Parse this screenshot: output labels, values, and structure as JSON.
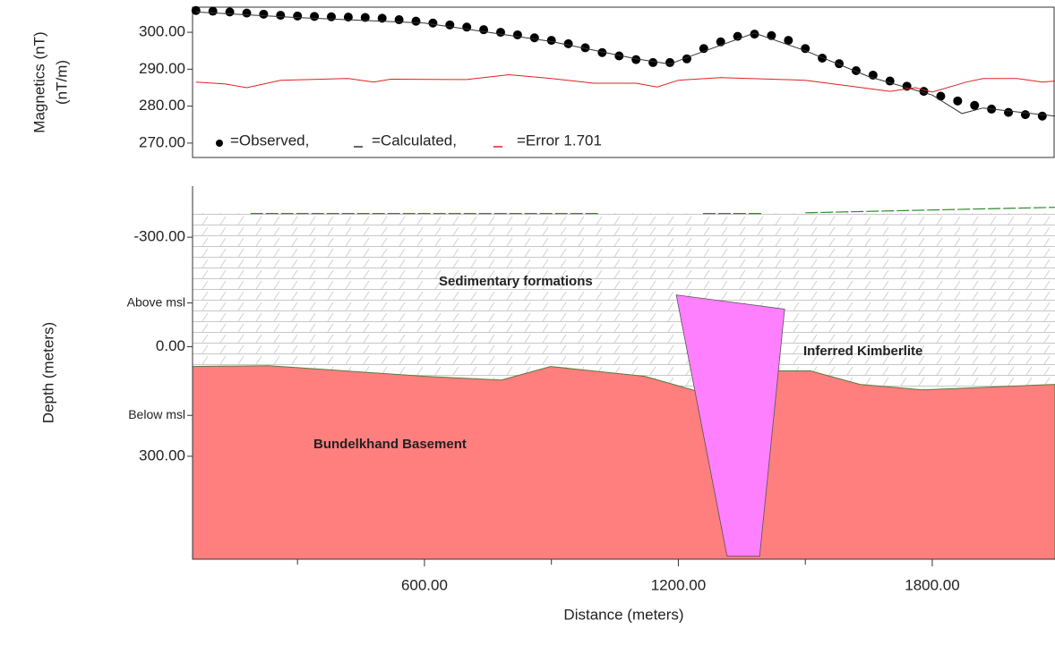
{
  "chart_data": [
    {
      "type": "line",
      "y_label": [
        "Magnetics (nT)",
        "(nT/m)"
      ],
      "xlim": [
        52,
        2090
      ],
      "ylim": [
        266.1,
        306.8
      ],
      "yticks": [
        {
          "value": 270,
          "label": "270.00"
        },
        {
          "value": 280,
          "label": "280.00"
        },
        {
          "value": 290,
          "label": "290.00"
        },
        {
          "value": 300,
          "label": "300.00"
        }
      ],
      "series": [
        {
          "name": "=Observed,",
          "color": "#000000",
          "marker": "dot",
          "x": [
            60,
            100,
            140,
            180,
            220,
            260,
            300,
            340,
            380,
            420,
            460,
            500,
            540,
            580,
            620,
            660,
            700,
            740,
            780,
            820,
            860,
            900,
            940,
            980,
            1020,
            1060,
            1100,
            1140,
            1180,
            1220,
            1260,
            1300,
            1340,
            1380,
            1420,
            1460,
            1500,
            1540,
            1580,
            1620,
            1660,
            1700,
            1740,
            1780,
            1820,
            1860,
            1900,
            1940,
            1980,
            2020,
            2060
          ],
          "values": [
            305.9,
            305.7,
            305.5,
            305.2,
            304.9,
            304.6,
            304.4,
            304.3,
            304.2,
            304.1,
            304.0,
            303.8,
            303.4,
            303.0,
            302.5,
            302.0,
            301.4,
            300.7,
            300.0,
            299.3,
            298.5,
            297.8,
            296.9,
            295.8,
            294.5,
            293.6,
            292.6,
            291.8,
            291.8,
            292.8,
            295.6,
            297.4,
            298.9,
            299.5,
            299.1,
            297.8,
            295.6,
            293.0,
            291.5,
            289.6,
            288.4,
            286.8,
            285.4,
            284.0,
            282.7,
            281.4,
            280.2,
            279.2,
            278.3,
            277.7,
            277.3
          ]
        },
        {
          "name": "=Calculated,",
          "color": "#333333",
          "marker": "line",
          "x": [
            60,
            300,
            600,
            900,
            1100,
            1180,
            1240,
            1380,
            1500,
            1650,
            1800,
            1870,
            1920,
            2090
          ],
          "values": [
            305.5,
            304,
            302.5,
            297.5,
            292.8,
            291.4,
            294,
            299.8,
            295,
            288,
            283,
            278,
            279.5,
            277.3
          ]
        },
        {
          "name": "=Error 1.701",
          "color": "#e02020",
          "marker": "line",
          "x": [
            60,
            130,
            180,
            260,
            420,
            480,
            520,
            700,
            800,
            900,
            1000,
            1100,
            1150,
            1200,
            1300,
            1500,
            1600,
            1700,
            1760,
            1800,
            1880,
            1920,
            2000,
            2060,
            2090
          ],
          "values": [
            286.5,
            286,
            285,
            287,
            287.5,
            286.5,
            287.3,
            287.2,
            288.5,
            287.5,
            286.2,
            286.2,
            285.2,
            287,
            287.7,
            287,
            285.5,
            284,
            285,
            283.8,
            286.5,
            287.5,
            287.5,
            286.5,
            286.8
          ]
        }
      ]
    },
    {
      "type": "section",
      "x_label": "Distance (meters)",
      "y_label": "Depth (meters)",
      "xlim": [
        52,
        2090
      ],
      "ylim": [
        -440,
        582
      ],
      "y_inverted": true,
      "xticks": [
        {
          "value": 600,
          "label": "600.00"
        },
        {
          "value": 1200,
          "label": "1200.00"
        },
        {
          "value": 1800,
          "label": "1800.00"
        }
      ],
      "xticks_minor": [
        300,
        900,
        1500
      ],
      "yticks": [
        {
          "value": -300,
          "label": "-300.00"
        },
        {
          "value": -120,
          "label": "Above msl"
        },
        {
          "value": 0,
          "label": "0.00"
        },
        {
          "value": 188,
          "label": "Below msl"
        },
        {
          "value": 300,
          "label": "300.00"
        }
      ],
      "layers": [
        {
          "name": "Sedimentary formations",
          "color": "#b0b0b0",
          "fill": "hatch"
        },
        {
          "name": "Bundelkhand Basement",
          "color": "#ff7f7f",
          "x": [
            52,
            232,
            602,
            782,
            898,
            1121,
            1248,
            1438,
            1512,
            1629,
            1777,
            2090
          ],
          "y": [
            54,
            52,
            81,
            91,
            54,
            81,
            123,
            66,
            66,
            103,
            118,
            103
          ]
        },
        {
          "name": "Inferred Kimberlite",
          "color": "#ff80ff",
          "x": [
            1195,
            1451,
            1392,
            1315
          ],
          "y": [
            -142,
            -103,
            574,
            574
          ]
        }
      ],
      "surface": {
        "color": "#2e8b2e",
        "x": [
          189,
          1011,
          1100,
          1258,
          1396,
          1450,
          1500,
          2090
        ],
        "y": [
          -365,
          -365,
          null,
          -365,
          -365,
          null,
          -367,
          -382
        ]
      }
    }
  ]
}
